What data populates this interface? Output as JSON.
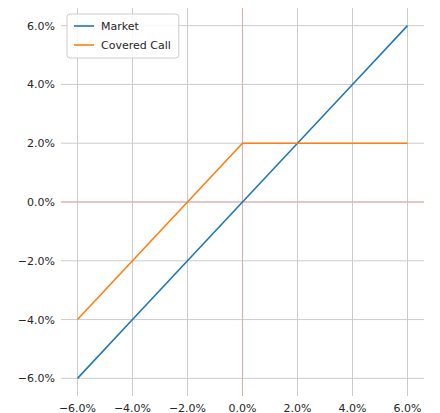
{
  "chart_data": {
    "type": "line",
    "x": [
      -6,
      -4,
      -2,
      0,
      2,
      4,
      6
    ],
    "series": [
      {
        "name": "Market",
        "color": "#1f77b4",
        "values": [
          -6,
          -4,
          -2,
          0,
          2,
          4,
          6
        ]
      },
      {
        "name": "Covered Call",
        "color": "#ff7f0e",
        "values": [
          -4,
          -2,
          0,
          2,
          2,
          2,
          2
        ]
      }
    ],
    "xlim": [
      -6.6,
      6.6
    ],
    "ylim": [
      -6.6,
      6.6
    ],
    "xticks": [
      {
        "value": -6,
        "label": "−6.0%"
      },
      {
        "value": -4,
        "label": "−4.0%"
      },
      {
        "value": -2,
        "label": "−2.0%"
      },
      {
        "value": 0,
        "label": "0.0%"
      },
      {
        "value": 2,
        "label": "2.0%"
      },
      {
        "value": 4,
        "label": "4.0%"
      },
      {
        "value": 6,
        "label": "6.0%"
      }
    ],
    "yticks": [
      {
        "value": -6,
        "label": "−6.0%"
      },
      {
        "value": -4,
        "label": "−4.0%"
      },
      {
        "value": -2,
        "label": "−2.0%"
      },
      {
        "value": 0,
        "label": "0.0%"
      },
      {
        "value": 2,
        "label": "2.0%"
      },
      {
        "value": 4,
        "label": "4.0%"
      },
      {
        "value": 6,
        "label": "6.0%"
      }
    ],
    "hlines": [
      0
    ],
    "vlines": [
      0
    ],
    "grid": true,
    "legend": "upper left"
  }
}
